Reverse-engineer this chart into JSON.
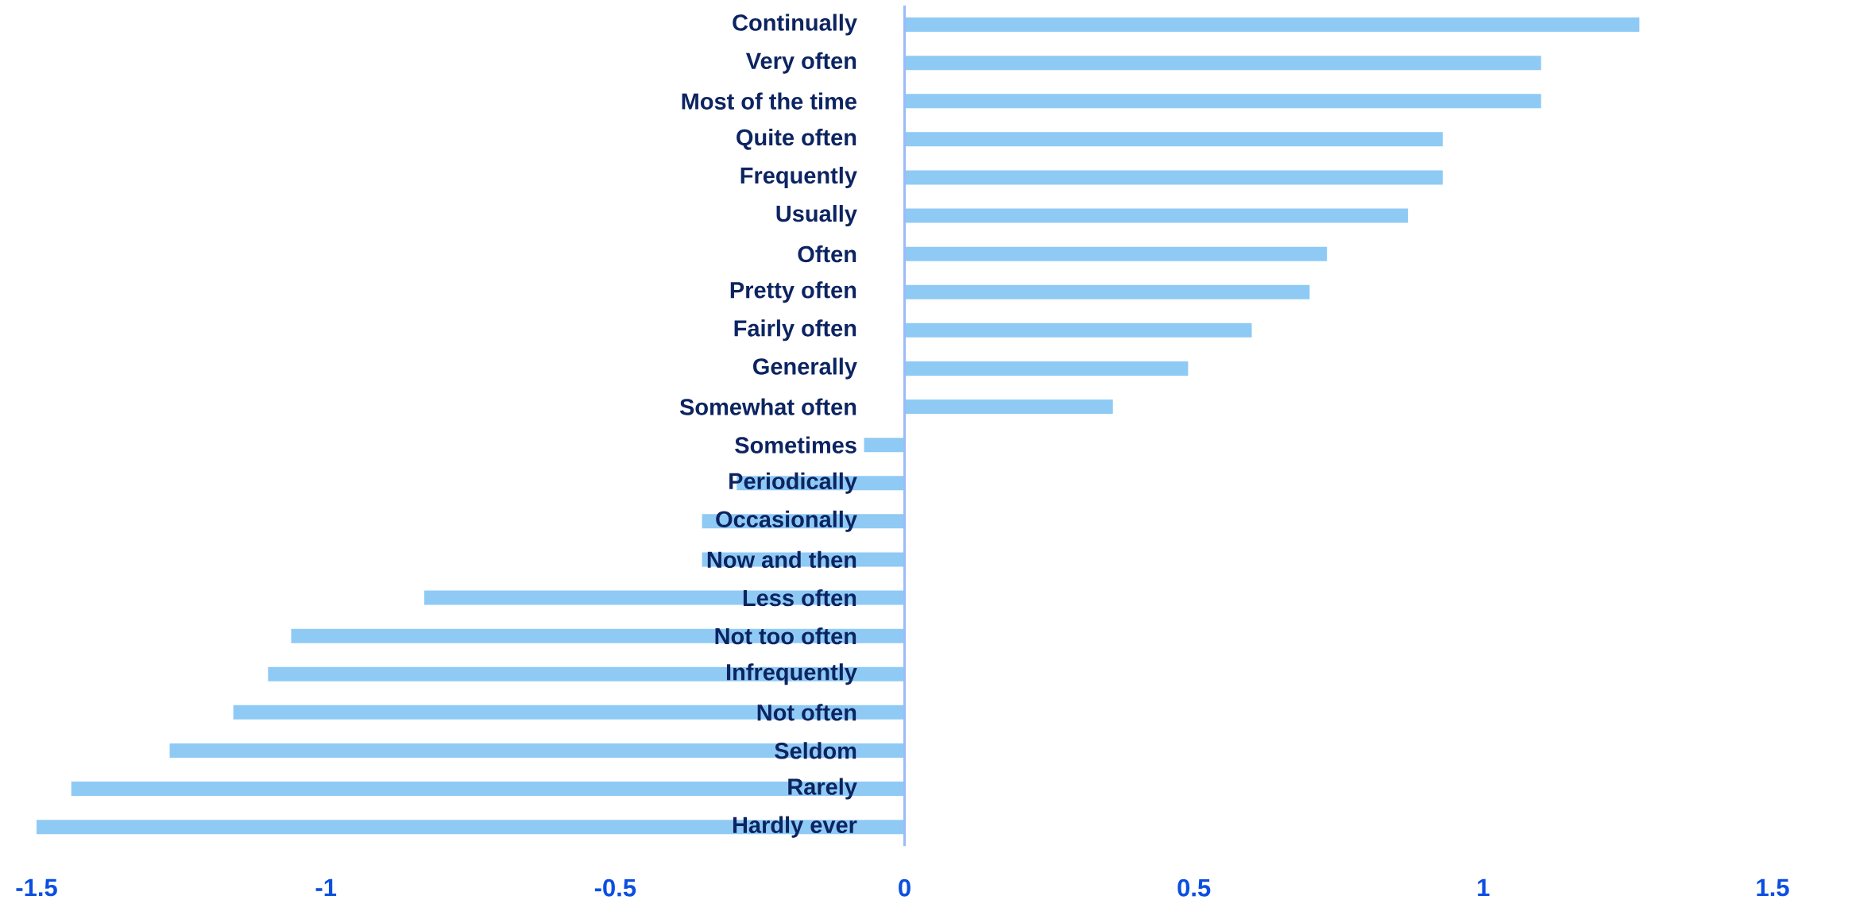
{
  "chart_data": {
    "type": "bar",
    "orientation": "horizontal",
    "categories": [
      "Continually",
      "Very often",
      "Most of the time",
      "Quite often",
      "Frequently",
      "Usually",
      "Often",
      "Pretty often",
      "Fairly often",
      "Generally",
      "Somewhat often",
      "Sometimes",
      "Periodically",
      "Occasionally",
      "Now and then",
      "Less often",
      "Not too often",
      "Infrequently",
      "Not often",
      "Seldom",
      "Rarely",
      "Hardly ever"
    ],
    "values": [
      1.27,
      1.1,
      1.1,
      0.93,
      0.93,
      0.87,
      0.73,
      0.7,
      0.6,
      0.49,
      0.36,
      -0.07,
      -0.29,
      -0.35,
      -0.35,
      -0.83,
      -1.06,
      -1.1,
      -1.16,
      -1.27,
      -1.44,
      -1.5
    ],
    "color": "#8fcaf5",
    "xlim": [
      -1.5,
      1.5
    ],
    "xticks": [
      -1.5,
      -1,
      -0.5,
      0,
      0.5,
      1,
      1.5
    ]
  }
}
